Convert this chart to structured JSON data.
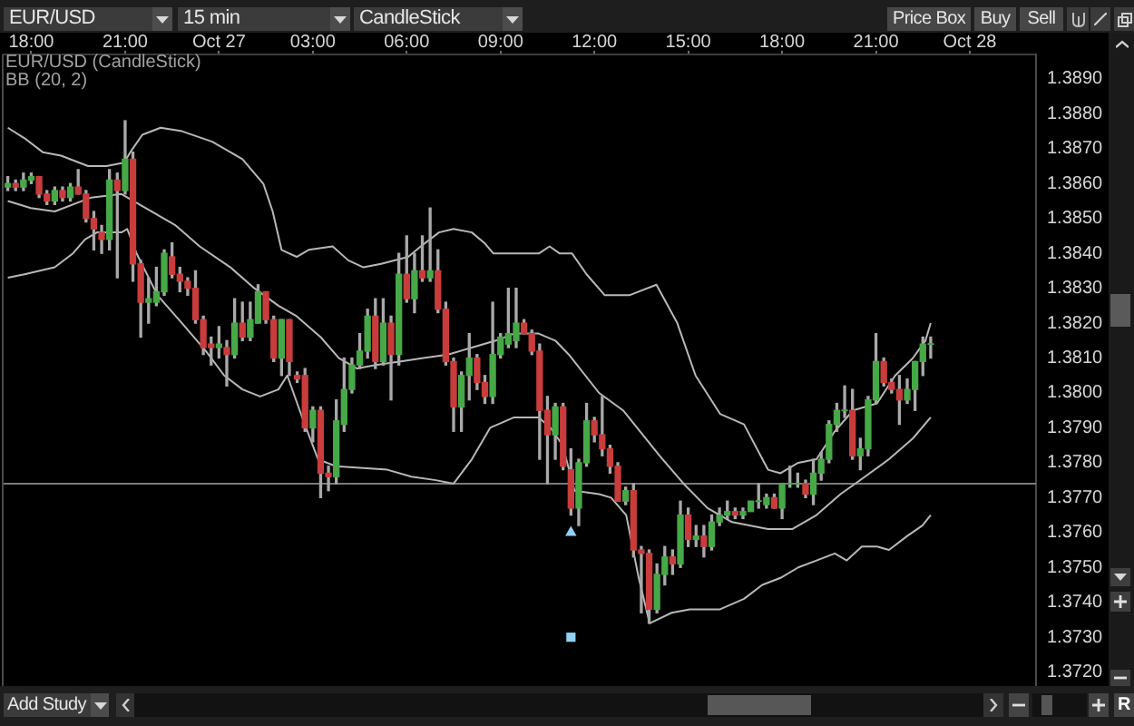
{
  "chart_data": {
    "type": "candlestick",
    "title": "EUR/USD (CandleStick)",
    "subtitle": "BB (20, 2)",
    "x": [
      "--10-26T17:15",
      "--10-26T17:30",
      "--10-26T17:45",
      "--10-26T18:00",
      "--10-26T18:15",
      "--10-26T18:30",
      "--10-26T18:45",
      "--10-26T19:00",
      "--10-26T19:15",
      "--10-26T19:30",
      "--10-26T19:45",
      "--10-26T20:00",
      "--10-26T20:15",
      "--10-26T20:30",
      "--10-26T20:45",
      "--10-26T21:00",
      "--10-26T21:15",
      "--10-26T21:30",
      "--10-26T21:45",
      "--10-26T22:00",
      "--10-26T22:15",
      "--10-26T22:30",
      "--10-26T22:45",
      "--10-26T23:00",
      "--10-26T23:15",
      "--10-26T23:30",
      "--10-26T23:45",
      "--10-27T00:00",
      "--10-27T00:15",
      "--10-27T00:30",
      "--10-27T00:45",
      "--10-27T01:00",
      "--10-27T01:15",
      "--10-27T01:30",
      "--10-27T01:45",
      "--10-27T02:00",
      "--10-27T02:15",
      "--10-27T02:30",
      "--10-27T02:45",
      "--10-27T03:00",
      "--10-27T03:15",
      "--10-27T03:30",
      "--10-27T03:45",
      "--10-27T04:00",
      "--10-27T04:15",
      "--10-27T04:30",
      "--10-27T04:45",
      "--10-27T05:00",
      "--10-27T05:15",
      "--10-27T05:30",
      "--10-27T05:45",
      "--10-27T06:00",
      "--10-27T06:15",
      "--10-27T06:30",
      "--10-27T06:45",
      "--10-27T07:00",
      "--10-27T07:15",
      "--10-27T07:30",
      "--10-27T07:45",
      "--10-27T08:00",
      "--10-27T08:15",
      "--10-27T08:30",
      "--10-27T08:45",
      "--10-27T09:00",
      "--10-27T09:15",
      "--10-27T09:30",
      "--10-27T09:45",
      "--10-27T10:00",
      "--10-27T10:15",
      "--10-27T10:30",
      "--10-27T10:45",
      "--10-27T11:00",
      "--10-27T11:15",
      "--10-27T11:30",
      "--10-27T11:45",
      "--10-27T12:00",
      "--10-27T12:15",
      "--10-27T12:30",
      "--10-27T12:45",
      "--10-27T13:00",
      "--10-27T13:15",
      "--10-27T13:30",
      "--10-27T13:45",
      "--10-27T14:00",
      "--10-27T14:15",
      "--10-27T14:30",
      "--10-27T14:45",
      "--10-27T15:00",
      "--10-27T15:15",
      "--10-27T15:30",
      "--10-27T15:45",
      "--10-27T16:00",
      "--10-27T16:15",
      "--10-27T16:30",
      "--10-27T16:45",
      "--10-27T17:00",
      "--10-27T17:15",
      "--10-27T17:30",
      "--10-27T17:45",
      "--10-27T18:00",
      "--10-27T18:15",
      "--10-27T18:30",
      "--10-27T18:45",
      "--10-27T19:00",
      "--10-27T19:15",
      "--10-27T19:30",
      "--10-27T19:45",
      "--10-27T20:00",
      "--10-27T20:15",
      "--10-27T20:30",
      "--10-27T20:45",
      "--10-27T21:00",
      "--10-27T21:15",
      "--10-27T21:30",
      "--10-27T21:45",
      "--10-27T22:00",
      "--10-27T22:15",
      "--10-27T22:30",
      "--10-27T22:45"
    ],
    "ohlc": [
      [
        1.3859,
        1.3862,
        1.3858,
        1.386
      ],
      [
        1.386,
        1.3861,
        1.3858,
        1.3859
      ],
      [
        1.3859,
        1.3863,
        1.3858,
        1.3861
      ],
      [
        1.3861,
        1.3863,
        1.386,
        1.3862
      ],
      [
        1.3862,
        1.3862,
        1.3856,
        1.3857
      ],
      [
        1.3857,
        1.3858,
        1.3854,
        1.3855
      ],
      [
        1.3855,
        1.3859,
        1.3854,
        1.3858
      ],
      [
        1.3858,
        1.3859,
        1.3855,
        1.3856
      ],
      [
        1.3856,
        1.386,
        1.3855,
        1.3859
      ],
      [
        1.3859,
        1.3864,
        1.3857,
        1.3857
      ],
      [
        1.3857,
        1.3858,
        1.3849,
        1.385
      ],
      [
        1.385,
        1.3852,
        1.3841,
        1.3847
      ],
      [
        1.3846,
        1.3848,
        1.384,
        1.3844
      ],
      [
        1.3844,
        1.3864,
        1.3841,
        1.3861
      ],
      [
        1.3861,
        1.3863,
        1.3833,
        1.3858
      ],
      [
        1.3858,
        1.3878,
        1.3857,
        1.3867
      ],
      [
        1.3867,
        1.3869,
        1.3832,
        1.3837
      ],
      [
        1.3837,
        1.3838,
        1.3816,
        1.3826
      ],
      [
        1.3826,
        1.3833,
        1.382,
        1.3827
      ],
      [
        1.3826,
        1.3836,
        1.3825,
        1.3829
      ],
      [
        1.3829,
        1.3841,
        1.3828,
        1.384
      ],
      [
        1.3839,
        1.3843,
        1.3833,
        1.3834
      ],
      [
        1.3834,
        1.3836,
        1.3829,
        1.3832
      ],
      [
        1.3832,
        1.3833,
        1.3828,
        1.383
      ],
      [
        1.383,
        1.3835,
        1.382,
        1.3821
      ],
      [
        1.3821,
        1.3822,
        1.3811,
        1.3813
      ],
      [
        1.3814,
        1.3816,
        1.3808,
        1.3813
      ],
      [
        1.3813,
        1.3819,
        1.381,
        1.3814
      ],
      [
        1.3813,
        1.3815,
        1.3802,
        1.3811
      ],
      [
        1.3811,
        1.3827,
        1.381,
        1.382
      ],
      [
        1.382,
        1.3826,
        1.3815,
        1.3816
      ],
      [
        1.3816,
        1.3826,
        1.3815,
        1.3821
      ],
      [
        1.382,
        1.3831,
        1.382,
        1.3829
      ],
      [
        1.3829,
        1.3829,
        1.382,
        1.3821
      ],
      [
        1.3821,
        1.3822,
        1.3809,
        1.381
      ],
      [
        1.381,
        1.3821,
        1.3805,
        1.3821
      ],
      [
        1.3821,
        1.3821,
        1.3805,
        1.3809
      ],
      [
        1.3805,
        1.3806,
        1.3803,
        1.3804
      ],
      [
        1.3805,
        1.3807,
        1.3789,
        1.379
      ],
      [
        1.379,
        1.3796,
        1.3786,
        1.3795
      ],
      [
        1.3795,
        1.3796,
        1.377,
        1.3777
      ],
      [
        1.3777,
        1.3779,
        1.3772,
        1.3776
      ],
      [
        1.3776,
        1.3798,
        1.3774,
        1.3792
      ],
      [
        1.3791,
        1.381,
        1.3789,
        1.3801
      ],
      [
        1.3801,
        1.381,
        1.38,
        1.3808
      ],
      [
        1.3808,
        1.3817,
        1.3807,
        1.3812
      ],
      [
        1.3812,
        1.3824,
        1.381,
        1.3822
      ],
      [
        1.3822,
        1.3827,
        1.3807,
        1.3809
      ],
      [
        1.3809,
        1.3827,
        1.3808,
        1.382
      ],
      [
        1.382,
        1.3822,
        1.3798,
        1.3811
      ],
      [
        1.3811,
        1.384,
        1.3808,
        1.3834
      ],
      [
        1.3834,
        1.3845,
        1.3826,
        1.3827
      ],
      [
        1.3827,
        1.384,
        1.3823,
        1.3835
      ],
      [
        1.3835,
        1.3845,
        1.3832,
        1.3833
      ],
      [
        1.3833,
        1.3853,
        1.3832,
        1.3835
      ],
      [
        1.3835,
        1.3841,
        1.3823,
        1.3824
      ],
      [
        1.3824,
        1.3826,
        1.3808,
        1.3809
      ],
      [
        1.3809,
        1.381,
        1.3789,
        1.3796
      ],
      [
        1.3796,
        1.3806,
        1.3789,
        1.3805
      ],
      [
        1.3805,
        1.3817,
        1.3798,
        1.381
      ],
      [
        1.381,
        1.3811,
        1.3801,
        1.3803
      ],
      [
        1.3803,
        1.3805,
        1.3797,
        1.3799
      ],
      [
        1.3799,
        1.3826,
        1.3797,
        1.3811
      ],
      [
        1.3811,
        1.3817,
        1.381,
        1.3816
      ],
      [
        1.3814,
        1.383,
        1.3813,
        1.3817
      ],
      [
        1.3815,
        1.383,
        1.3813,
        1.382
      ],
      [
        1.382,
        1.3821,
        1.3817,
        1.3817
      ],
      [
        1.3817,
        1.3818,
        1.3811,
        1.3812
      ],
      [
        1.3812,
        1.3814,
        1.3781,
        1.3795
      ],
      [
        1.3795,
        1.3799,
        1.3774,
        1.3788
      ],
      [
        1.3788,
        1.3797,
        1.3781,
        1.3796
      ],
      [
        1.3796,
        1.3797,
        1.3778,
        1.3779
      ],
      [
        1.3778,
        1.3784,
        1.3765,
        1.3767
      ],
      [
        1.3767,
        1.3781,
        1.3762,
        1.378
      ],
      [
        1.378,
        1.3797,
        1.3779,
        1.3792
      ],
      [
        1.3792,
        1.3793,
        1.3786,
        1.3788
      ],
      [
        1.3788,
        1.3799,
        1.3782,
        1.3784
      ],
      [
        1.3784,
        1.3785,
        1.3777,
        1.3779
      ],
      [
        1.3779,
        1.378,
        1.3769,
        1.3769
      ],
      [
        1.3769,
        1.3773,
        1.3768,
        1.3772
      ],
      [
        1.3772,
        1.3774,
        1.3753,
        1.3755
      ],
      [
        1.3755,
        1.3756,
        1.3737,
        1.3754
      ],
      [
        1.3754,
        1.3755,
        1.3734,
        1.3738
      ],
      [
        1.3738,
        1.3751,
        1.3737,
        1.3748
      ],
      [
        1.3748,
        1.3756,
        1.3745,
        1.3753
      ],
      [
        1.3753,
        1.3755,
        1.3748,
        1.3751
      ],
      [
        1.3751,
        1.3769,
        1.375,
        1.3765
      ],
      [
        1.3765,
        1.3767,
        1.3756,
        1.3758
      ],
      [
        1.3758,
        1.3762,
        1.3756,
        1.3759
      ],
      [
        1.3759,
        1.3762,
        1.3753,
        1.3756
      ],
      [
        1.3756,
        1.3765,
        1.3755,
        1.3763
      ],
      [
        1.3763,
        1.3767,
        1.3762,
        1.3765
      ],
      [
        1.3765,
        1.3769,
        1.3764,
        1.3766
      ],
      [
        1.3766,
        1.3767,
        1.3764,
        1.3765
      ],
      [
        1.3765,
        1.3767,
        1.3764,
        1.3766
      ],
      [
        1.3766,
        1.3769,
        1.3766,
        1.3769
      ],
      [
        1.3769,
        1.3774,
        1.3767,
        1.3769
      ],
      [
        1.3768,
        1.3771,
        1.3767,
        1.377
      ],
      [
        1.377,
        1.3771,
        1.3767,
        1.3767
      ],
      [
        1.3767,
        1.3774,
        1.3764,
        1.3774
      ],
      [
        1.3774,
        1.3779,
        1.3773,
        1.3774
      ],
      [
        1.3774,
        1.3777,
        1.3773,
        1.3774
      ],
      [
        1.3774,
        1.3775,
        1.377,
        1.3771
      ],
      [
        1.3771,
        1.3781,
        1.3768,
        1.3777
      ],
      [
        1.3777,
        1.3783,
        1.3775,
        1.3781
      ],
      [
        1.3781,
        1.3792,
        1.378,
        1.3791
      ],
      [
        1.3791,
        1.3797,
        1.3789,
        1.3795
      ],
      [
        1.3795,
        1.3802,
        1.3793,
        1.3795
      ],
      [
        1.3795,
        1.3801,
        1.3781,
        1.3782
      ],
      [
        1.3782,
        1.3787,
        1.3778,
        1.3784
      ],
      [
        1.3784,
        1.3799,
        1.3782,
        1.3798
      ],
      [
        1.3798,
        1.3817,
        1.3797,
        1.3809
      ],
      [
        1.3809,
        1.381,
        1.3802,
        1.3803
      ],
      [
        1.3803,
        1.3804,
        1.38,
        1.3801
      ],
      [
        1.3801,
        1.3805,
        1.3791,
        1.3798
      ],
      [
        1.3798,
        1.3804,
        1.3797,
        1.3801
      ],
      [
        1.3801,
        1.3809,
        1.3795,
        1.3809
      ],
      [
        1.3809,
        1.3816,
        1.3805,
        1.3814
      ],
      [
        1.3814,
        1.3816,
        1.381,
        1.3814
      ]
    ],
    "colors": [
      "#46a846",
      "#c83c3c",
      "#46a846",
      "#46a846",
      "#c83c3c",
      "#c83c3c",
      "#46a846",
      "#c83c3c",
      "#46a846",
      "#c83c3c",
      "#c83c3c",
      "#c83c3c",
      "#c83c3c",
      "#46a846",
      "#c83c3c",
      "#46a846",
      "#c83c3c",
      "#c83c3c",
      "#46a846",
      "#46a846",
      "#46a846",
      "#c83c3c",
      "#c83c3c",
      "#c83c3c",
      "#c83c3c",
      "#c83c3c",
      "#c83c3c",
      "#46a846",
      "#c83c3c",
      "#46a846",
      "#c83c3c",
      "#46a846",
      "#46a846",
      "#c83c3c",
      "#c83c3c",
      "#46a846",
      "#c83c3c",
      "#c83c3c",
      "#c83c3c",
      "#46a846",
      "#c83c3c",
      "#c83c3c",
      "#46a846",
      "#46a846",
      "#46a846",
      "#46a846",
      "#46a846",
      "#c83c3c",
      "#46a846",
      "#c83c3c",
      "#46a846",
      "#c83c3c",
      "#46a846",
      "#c83c3c",
      "#46a846",
      "#c83c3c",
      "#c83c3c",
      "#c83c3c",
      "#46a846",
      "#46a846",
      "#c83c3c",
      "#c83c3c",
      "#46a846",
      "#46a846",
      "#46a846",
      "#46a846",
      "#c83c3c",
      "#c83c3c",
      "#c83c3c",
      "#c83c3c",
      "#46a846",
      "#c83c3c",
      "#c83c3c",
      "#46a846",
      "#46a846",
      "#c83c3c",
      "#c83c3c",
      "#c83c3c",
      "#c83c3c",
      "#46a846",
      "#c83c3c",
      "#c83c3c",
      "#c83c3c",
      "#46a846",
      "#46a846",
      "#c83c3c",
      "#46a846",
      "#c83c3c",
      "#46a846",
      "#c83c3c",
      "#46a846",
      "#46a846",
      "#46a846",
      "#c83c3c",
      "#46a846",
      "#46a846",
      "#46a846",
      "#46a846",
      "#c83c3c",
      "#46a846",
      "#46a846",
      "#46a846",
      "#c83c3c",
      "#46a846",
      "#46a846",
      "#46a846",
      "#46a846",
      "#46a846",
      "#c83c3c",
      "#46a846",
      "#46a846",
      "#46a846",
      "#c83c3c",
      "#c83c3c",
      "#c83c3c",
      "#46a846",
      "#46a846",
      "#46a846",
      "#46a846"
    ],
    "series": [
      {
        "type": "line",
        "color": "#b8b8b8",
        "x": [
          "--10-26T17:15",
          "--10-26T17:47",
          "--10-26T18:22",
          "--10-26T18:57",
          "--10-26T19:49",
          "--10-26T20:24",
          "--10-26T20:58",
          "--10-26T21:10",
          "--10-26T21:33",
          "--10-26T22:08",
          "--10-26T22:49",
          "--10-26T23:47",
          "--10-27T00:45",
          "--10-27T01:25",
          "--10-27T01:43",
          "--10-27T02:00",
          "--10-27T02:29",
          "--10-27T02:52",
          "--10-27T03:38",
          "--10-27T04:08",
          "--10-27T04:37",
          "--10-27T05:11",
          "--10-27T06:03",
          "--10-27T06:27",
          "--10-27T07:02",
          "--10-27T07:30",
          "--10-27T08:05",
          "--10-27T08:29",
          "--10-27T08:46",
          "--10-27T09:32",
          "--10-27T10:14",
          "--10-27T10:34",
          "--10-27T10:53",
          "--10-27T11:17",
          "--10-27T11:45",
          "--10-27T12:20",
          "--10-27T13:07",
          "--10-27T13:59",
          "--10-27T14:39",
          "--10-27T15:14",
          "--10-27T16:01",
          "--10-27T16:47",
          "--10-27T17:33",
          "--10-27T17:57",
          "--10-27T18:31",
          "--10-27T19:06",
          "--10-27T19:41",
          "--10-27T20:16",
          "--10-27T21:02",
          "--10-27T21:37",
          "--10-27T22:11",
          "--10-27T22:35",
          "--10-27T22:45"
        ],
        "values": [
          1.3876,
          1.3873,
          1.3869,
          1.3868,
          1.3865,
          1.3865,
          1.3866,
          1.3869,
          1.3874,
          1.3876,
          1.3875,
          1.3872,
          1.3867,
          1.386,
          1.3852,
          1.3841,
          1.3839,
          1.3841,
          1.3842,
          1.3838,
          1.3836,
          1.3837,
          1.3839,
          1.3842,
          1.3846,
          1.3847,
          1.3846,
          1.3843,
          1.384,
          1.384,
          1.384,
          1.3842,
          1.384,
          1.384,
          1.3834,
          1.3828,
          1.3828,
          1.3831,
          1.382,
          1.3805,
          1.3794,
          1.3791,
          1.3778,
          1.3777,
          1.378,
          1.3781,
          1.3789,
          1.3795,
          1.3797,
          1.3805,
          1.381,
          1.3815,
          1.382
        ]
      },
      {
        "type": "line",
        "color": "#b8b8b8",
        "x": [
          "--10-26T17:15",
          "--10-26T17:59",
          "--10-26T18:45",
          "--10-26T19:55",
          "--10-26T20:53",
          "--10-26T21:39",
          "--10-26T22:37",
          "--10-26T23:23",
          "--10-27T00:22",
          "--10-27T01:08",
          "--10-27T01:54",
          "--10-27T02:29",
          "--10-27T03:15",
          "--10-27T03:50",
          "--10-27T04:25",
          "--10-27T05:00",
          "--10-27T05:46",
          "--10-27T06:32",
          "--10-27T07:19",
          "--10-27T08:05",
          "--10-27T08:51",
          "--10-27T09:26",
          "--10-27T10:13",
          "--10-27T10:45",
          "--10-27T11:11",
          "--10-27T12:09",
          "--10-27T12:55",
          "--10-27T14:05",
          "--10-27T14:51",
          "--10-27T15:37",
          "--10-27T16:24",
          "--10-27T17:33",
          "--10-27T18:20",
          "--10-27T19:06",
          "--10-27T19:52",
          "--10-27T20:39",
          "--10-27T21:25",
          "--10-27T22:11",
          "--10-27T22:45"
        ],
        "values": [
          1.3855,
          1.3853,
          1.3852,
          1.3856,
          1.3857,
          1.3853,
          1.3848,
          1.3842,
          1.3836,
          1.383,
          1.3825,
          1.3822,
          1.3816,
          1.381,
          1.3807,
          1.3808,
          1.3809,
          1.381,
          1.3811,
          1.3813,
          1.3815,
          1.3817,
          1.3817,
          1.3815,
          1.3811,
          1.38,
          1.3795,
          1.3782,
          1.3774,
          1.3767,
          1.3763,
          1.3761,
          1.3761,
          1.3765,
          1.3771,
          1.3776,
          1.3781,
          1.3787,
          1.3793
        ]
      },
      {
        "type": "line",
        "color": "#b8b8b8",
        "x": [
          "--10-26T17:15",
          "--10-26T17:47",
          "--10-26T18:45",
          "--10-26T19:20",
          "--10-26T19:43",
          "--10-26T20:06",
          "--10-26T20:53",
          "--10-26T21:04",
          "--10-26T21:22",
          "--10-26T22:02",
          "--10-26T22:49",
          "--10-26T23:35",
          "--10-27T00:10",
          "--10-27T00:45",
          "--10-27T01:19",
          "--10-27T01:54",
          "--10-27T02:11",
          "--10-27T02:42",
          "--10-27T03:10",
          "--10-27T03:44",
          "--10-27T05:23",
          "--10-27T06:09",
          "--10-27T06:56",
          "--10-27T07:30",
          "--10-27T08:05",
          "--10-27T08:40",
          "--10-27T09:26",
          "--10-27T10:13",
          "--10-27T10:36",
          "--10-27T10:59",
          "--10-27T11:22",
          "--10-27T12:09",
          "--10-27T12:32",
          "--10-27T13:01",
          "--10-27T13:25",
          "--10-27T13:46",
          "--10-27T14:28",
          "--10-27T15:03",
          "--10-27T16:01",
          "--10-27T16:47",
          "--10-27T17:22",
          "--10-27T17:57",
          "--10-27T18:31",
          "--10-27T19:06",
          "--10-27T19:41",
          "--10-27T20:04",
          "--10-27T20:33",
          "--10-27T21:02",
          "--10-27T21:25",
          "--10-27T22:00",
          "--10-27T22:29",
          "--10-27T22:45"
        ],
        "values": [
          1.3833,
          1.3834,
          1.3836,
          1.384,
          1.3844,
          1.3846,
          1.3846,
          1.3847,
          1.384,
          1.3828,
          1.382,
          1.3812,
          1.3805,
          1.3801,
          1.3799,
          1.3801,
          1.3805,
          1.3792,
          1.3781,
          1.3779,
          1.3778,
          1.3776,
          1.3775,
          1.3774,
          1.3781,
          1.379,
          1.3793,
          1.3793,
          1.379,
          1.3785,
          1.3772,
          1.3771,
          1.377,
          1.3765,
          1.3747,
          1.3734,
          1.3737,
          1.3738,
          1.3738,
          1.3741,
          1.3745,
          1.3747,
          1.375,
          1.3752,
          1.3754,
          1.3752,
          1.3756,
          1.3756,
          1.3755,
          1.3759,
          1.3762,
          1.3765
        ]
      },
      {
        "type": "scatter",
        "marker": "triangle",
        "color": "#8fd0f5",
        "x": [
          "--10-27T11:15"
        ],
        "values": [
          1.376
        ]
      },
      {
        "type": "scatter",
        "marker": "square",
        "color": "#8fd0f5",
        "x": [
          "--10-27T11:15"
        ],
        "values": [
          1.373
        ]
      }
    ],
    "xlim": [
      "--10-26T17:07",
      "--10-28T02:07"
    ],
    "xticks": [
      {
        "value": "--10-26T18:00",
        "label": "18:00"
      },
      {
        "value": "--10-26T21:00",
        "label": "21:00"
      },
      {
        "value": "--10-27",
        "label": "Oct 27"
      },
      {
        "value": "--10-27T03:00",
        "label": "03:00"
      },
      {
        "value": "--10-27T06:00",
        "label": "06:00"
      },
      {
        "value": "--10-27T09:00",
        "label": "09:00"
      },
      {
        "value": "--10-27T12:00",
        "label": "12:00"
      },
      {
        "value": "--10-27T15:00",
        "label": "15:00"
      },
      {
        "value": "--10-27T18:00",
        "label": "18:00"
      },
      {
        "value": "--10-27T21:00",
        "label": "21:00"
      },
      {
        "value": "--10-28",
        "label": "Oct 28"
      }
    ],
    "ylim": [
      1.3716,
      1.3897
    ],
    "yticks": [
      {
        "value": 1.372,
        "label": "1.3720"
      },
      {
        "value": 1.373,
        "label": "1.3730"
      },
      {
        "value": 1.374,
        "label": "1.3740"
      },
      {
        "value": 1.375,
        "label": "1.3750"
      },
      {
        "value": 1.376,
        "label": "1.3760"
      },
      {
        "value": 1.377,
        "label": "1.3770"
      },
      {
        "value": 1.378,
        "label": "1.3780"
      },
      {
        "value": 1.379,
        "label": "1.3790"
      },
      {
        "value": 1.38,
        "label": "1.3800"
      },
      {
        "value": 1.381,
        "label": "1.3810"
      },
      {
        "value": 1.382,
        "label": "1.3820"
      },
      {
        "value": 1.383,
        "label": "1.3830"
      },
      {
        "value": 1.384,
        "label": "1.3840"
      },
      {
        "value": 1.385,
        "label": "1.3850"
      },
      {
        "value": 1.386,
        "label": "1.3860"
      },
      {
        "value": 1.387,
        "label": "1.3870"
      },
      {
        "value": 1.388,
        "label": "1.3880"
      },
      {
        "value": 1.389,
        "label": "1.3890"
      }
    ],
    "ref_lines": [
      {
        "axis": "y",
        "value": 1.3774,
        "color": "#7a7a7a"
      }
    ],
    "annotations": [
      "EUR/USD",
      "15 min",
      "CandleStick",
      "Price Box",
      "Buy",
      "Sell",
      "Add Study",
      "R"
    ]
  }
}
